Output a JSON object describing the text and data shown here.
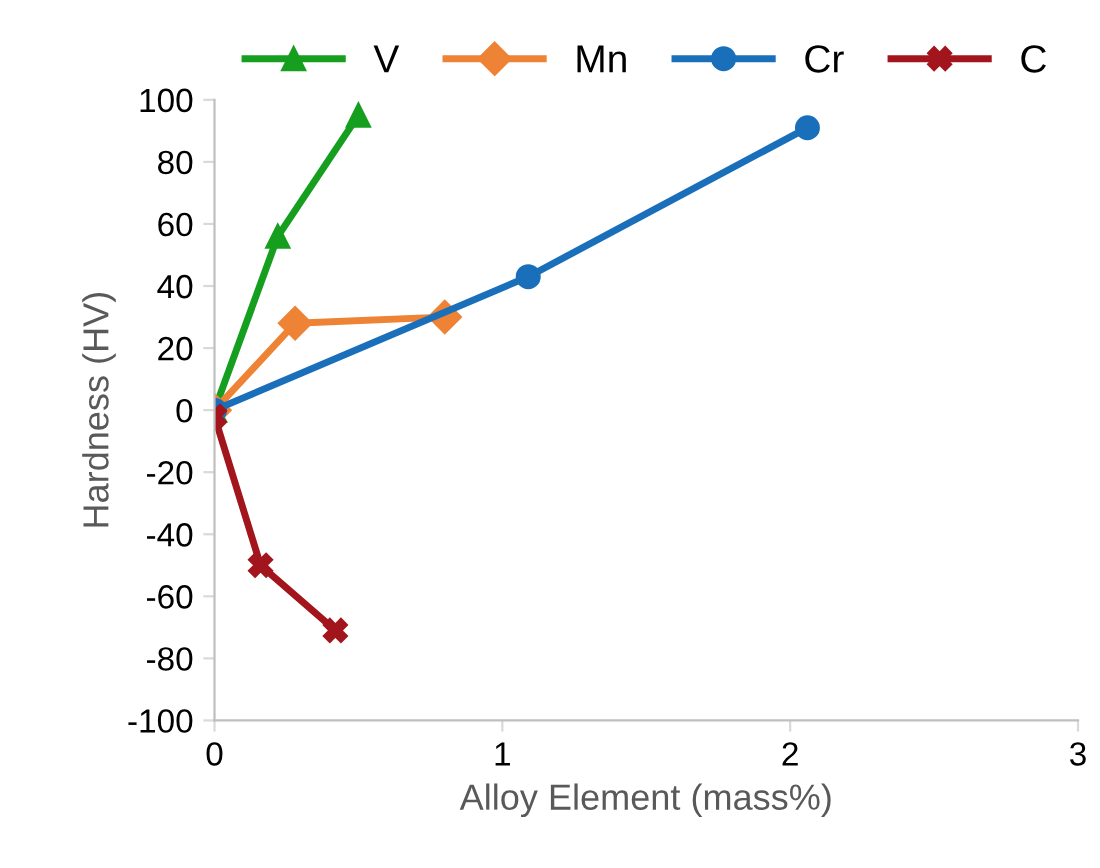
{
  "chart_data": {
    "type": "line",
    "xlabel": "Alloy Element (mass%)",
    "ylabel": "Hardness (HV)",
    "xlim": [
      0,
      3
    ],
    "xticks": [
      0,
      1,
      2,
      3
    ],
    "ylim": [
      -100,
      100
    ],
    "yticks": [
      -100,
      -80,
      -60,
      -40,
      -20,
      0,
      20,
      40,
      60,
      80,
      100
    ],
    "grid": false,
    "legend": "top",
    "series": [
      {
        "name": "V",
        "color": "#169e1f",
        "marker": "triangle",
        "x": [
          0,
          0.22,
          0.5
        ],
        "values": [
          0,
          56,
          95
        ]
      },
      {
        "name": "Mn",
        "color": "#ee8235",
        "marker": "diamond",
        "x": [
          0,
          0.28,
          0.8
        ],
        "values": [
          0,
          28,
          30
        ]
      },
      {
        "name": "Cr",
        "color": "#1a6fba",
        "marker": "circle",
        "x": [
          0,
          1.09,
          2.06
        ],
        "values": [
          0,
          43,
          91
        ]
      },
      {
        "name": "C",
        "color": "#a3151c",
        "marker": "cross",
        "x": [
          0,
          0.16,
          0.42
        ],
        "values": [
          -2,
          -50,
          -71
        ]
      }
    ]
  }
}
